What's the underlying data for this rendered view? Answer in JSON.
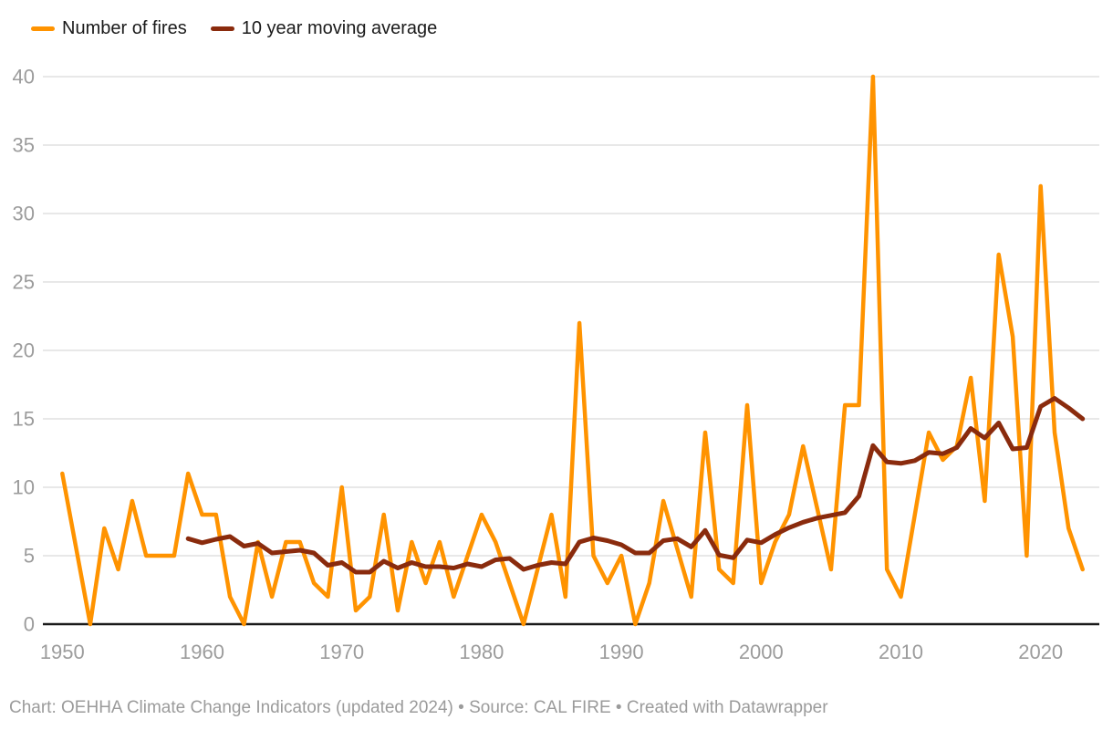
{
  "legend": {
    "items": [
      {
        "label": "Number of fires",
        "color": "#ff9300"
      },
      {
        "label": "10 year moving average",
        "color": "#8a2b0d"
      }
    ]
  },
  "footer": {
    "text": "Chart: OEHHA Climate Change Indicators (updated 2024) • Source: CAL FIRE • Created with Datawrapper"
  },
  "colors": {
    "grid": "#e8e8e8",
    "axis": "#1a1a1a",
    "tick_label": "#9c9c9c",
    "background": "#ffffff"
  },
  "chart_data": {
    "type": "line",
    "title": "",
    "xlabel": "",
    "ylabel": "",
    "xlim": [
      1950,
      2023
    ],
    "ylim": [
      0,
      40
    ],
    "xticks": [
      1950,
      1960,
      1970,
      1980,
      1990,
      2000,
      2010,
      2020
    ],
    "yticks": [
      0,
      5,
      10,
      15,
      20,
      25,
      30,
      35,
      40
    ],
    "grid": "horizontal",
    "legend_position": "top-left",
    "series": [
      {
        "name": "Number of fires",
        "color": "#ff9300",
        "stroke_width": 4.5,
        "start_year": 1950,
        "values": [
          11,
          5.5,
          0,
          7,
          4,
          9,
          5,
          5,
          5,
          11,
          8,
          8,
          2,
          0,
          6,
          2,
          6,
          6,
          3,
          2,
          10,
          1,
          2,
          8,
          1,
          6,
          3,
          6,
          2,
          5,
          8,
          6,
          3,
          0,
          4,
          8,
          2,
          22,
          5,
          3,
          5,
          0,
          3,
          9,
          5.5,
          2,
          14,
          4,
          3,
          16,
          3,
          6,
          8,
          13,
          8.5,
          4,
          16,
          16,
          40,
          4,
          2,
          8,
          14,
          12,
          13,
          18,
          9,
          27,
          21,
          5,
          32,
          14,
          7,
          4
        ]
      },
      {
        "name": "10 year moving average",
        "color": "#8a2b0d",
        "stroke_width": 5,
        "start_year": 1959,
        "values": [
          6.25,
          5.95,
          6.2,
          6.4,
          5.7,
          5.9,
          5.2,
          5.3,
          5.4,
          5.2,
          4.3,
          4.5,
          3.8,
          3.8,
          4.6,
          4.1,
          4.5,
          4.2,
          4.2,
          4.1,
          4.4,
          4.2,
          4.7,
          4.8,
          4.0,
          4.3,
          4.5,
          4.4,
          6.0,
          6.3,
          6.1,
          5.8,
          5.2,
          5.2,
          6.1,
          6.25,
          5.65,
          6.85,
          5.05,
          4.85,
          6.15,
          5.95,
          6.55,
          7.05,
          7.45,
          7.75,
          7.95,
          8.15,
          9.35,
          13.05,
          11.85,
          11.75,
          11.95,
          12.55,
          12.45,
          12.9,
          14.3,
          13.6,
          14.7,
          12.8,
          12.9,
          15.9,
          16.5,
          15.8,
          15.0
        ]
      }
    ]
  }
}
